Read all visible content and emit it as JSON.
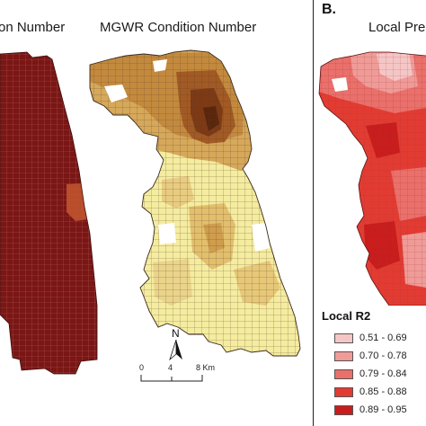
{
  "panel_a": {
    "title_left": "on Number",
    "title_right": "MGWR Condition Number",
    "colors": {
      "global_fill": "#7a1616",
      "light": "#f4ec9f",
      "mid": "#dcb05a",
      "dark": "#b06a2a",
      "darkest": "#6f3514",
      "lines": "#5a3a2a"
    }
  },
  "panel_b": {
    "letter": "B.",
    "title": "Local Pre",
    "colors": {
      "c1": "#f5c6c6",
      "c2": "#ef9b98",
      "c3": "#e9706b",
      "c4": "#e23c32",
      "c5": "#c91d1d"
    }
  },
  "north_arrow": {
    "label": "N",
    "icon": "north-arrow-icon"
  },
  "scale_bar": {
    "ticks": [
      "0",
      "4",
      "8 Km"
    ]
  },
  "legend": {
    "title": "Local R2",
    "items": [
      {
        "label": "0.51 - 0.69",
        "color": "#f5c6c6"
      },
      {
        "label": "0.70 - 0.78",
        "color": "#ef9b98"
      },
      {
        "label": "0.79 - 0.84",
        "color": "#e9706b"
      },
      {
        "label": "0.85 - 0.88",
        "color": "#e23c32"
      },
      {
        "label": "0.89 - 0.95",
        "color": "#c91d1d"
      }
    ]
  }
}
